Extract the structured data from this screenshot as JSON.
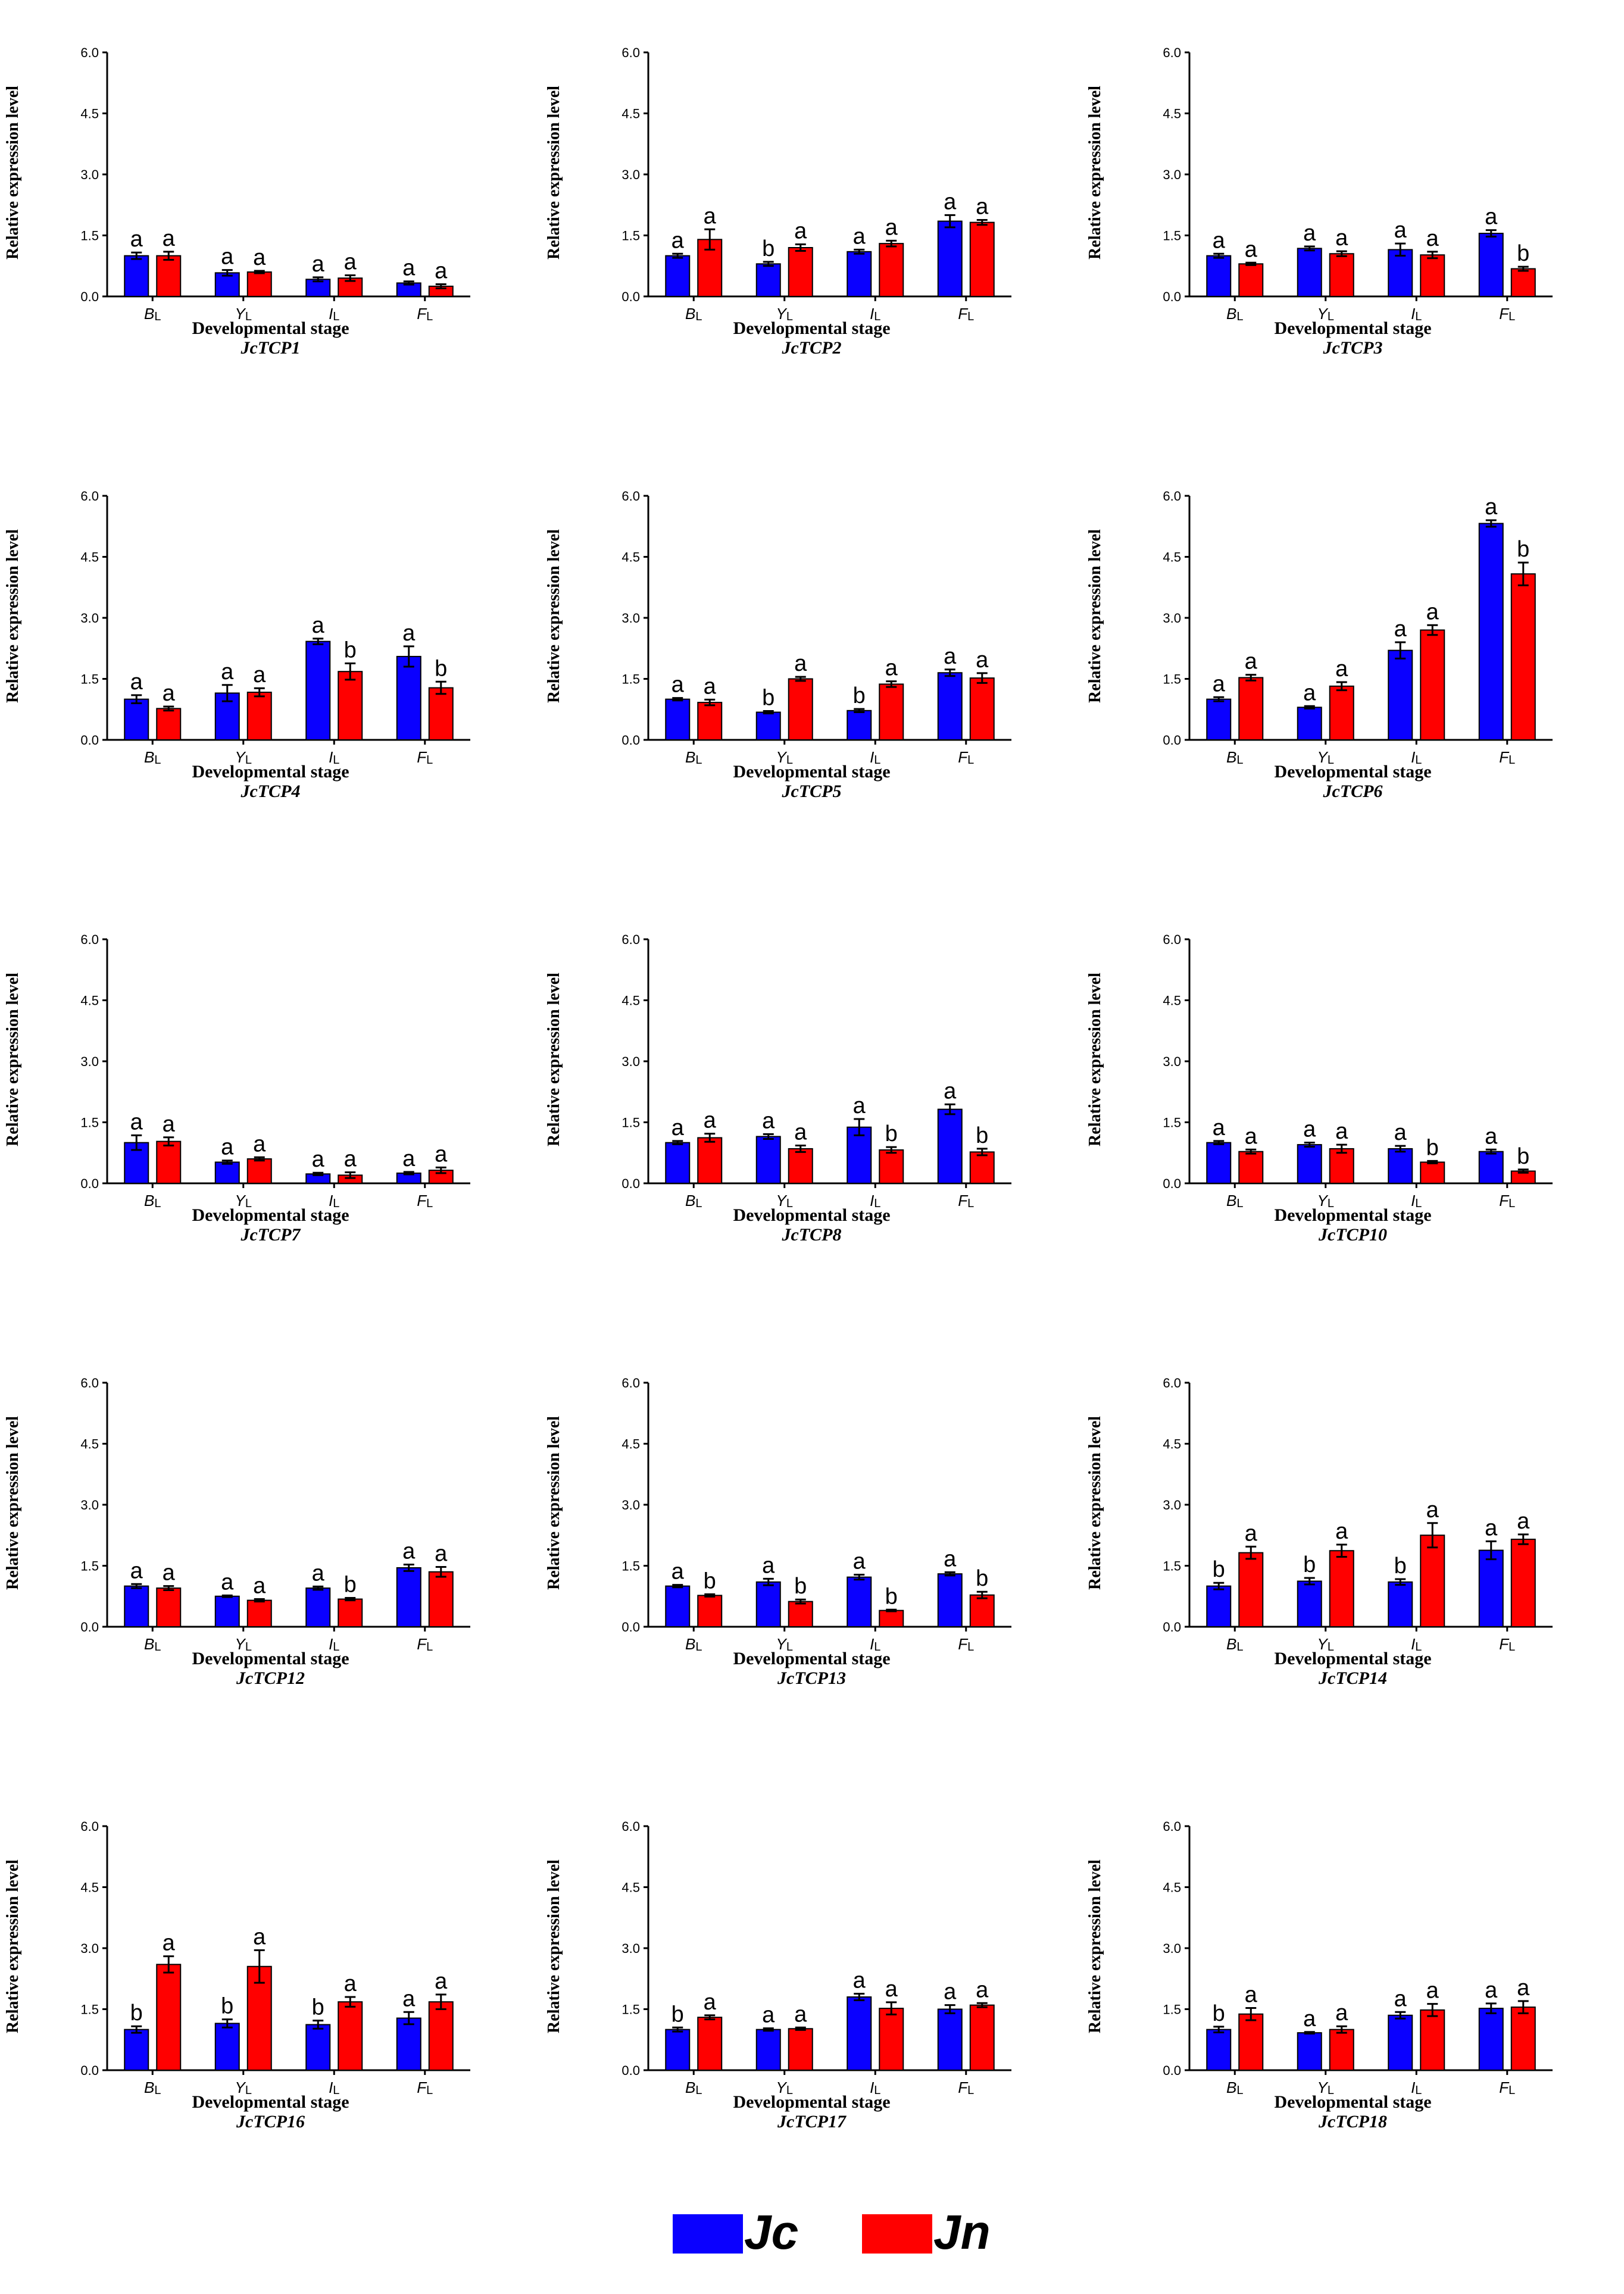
{
  "colors": {
    "Jc": "#0a00ff",
    "Jn": "#ff0000"
  },
  "legend": [
    {
      "label": "Jc",
      "color": "#0a00ff"
    },
    {
      "label": "Jn",
      "color": "#ff0000"
    }
  ],
  "chart_data": [
    {
      "type": "bar",
      "gene": "JcTCP1",
      "xlabel": "Developmental stage",
      "ylabel": "Relative expression level",
      "ylim": [
        0,
        6
      ],
      "yticks": [
        "0.0",
        "1.5",
        "3.0",
        "4.5",
        "6.0"
      ],
      "categories": [
        "B",
        "Y",
        "I",
        "F"
      ],
      "category_subscript": "L",
      "series": [
        {
          "name": "Jc",
          "values": [
            1.0,
            0.58,
            0.42,
            0.33
          ],
          "errors": [
            0.08,
            0.07,
            0.05,
            0.04
          ],
          "letters": [
            "a",
            "a",
            "a",
            "a"
          ]
        },
        {
          "name": "Jn",
          "values": [
            1.0,
            0.6,
            0.45,
            0.25
          ],
          "errors": [
            0.1,
            0.03,
            0.07,
            0.05
          ],
          "letters": [
            "a",
            "a",
            "a",
            "a"
          ]
        }
      ]
    },
    {
      "type": "bar",
      "gene": "JcTCP2",
      "xlabel": "Developmental stage",
      "ylabel": "Relative expression level",
      "ylim": [
        0,
        6
      ],
      "yticks": [
        "0.0",
        "1.5",
        "3.0",
        "4.5",
        "6.0"
      ],
      "categories": [
        "B",
        "Y",
        "I",
        "F"
      ],
      "category_subscript": "L",
      "series": [
        {
          "name": "Jc",
          "values": [
            1.0,
            0.8,
            1.1,
            1.85
          ],
          "errors": [
            0.05,
            0.05,
            0.05,
            0.15
          ],
          "letters": [
            "a",
            "b",
            "a",
            "a"
          ]
        },
        {
          "name": "Jn",
          "values": [
            1.4,
            1.2,
            1.3,
            1.82
          ],
          "errors": [
            0.25,
            0.08,
            0.07,
            0.06
          ],
          "letters": [
            "a",
            "a",
            "a",
            "a"
          ]
        }
      ]
    },
    {
      "type": "bar",
      "gene": "JcTCP3",
      "xlabel": "Developmental stage",
      "ylabel": "Relative expression level",
      "ylim": [
        0,
        6
      ],
      "yticks": [
        "0.0",
        "1.5",
        "3.0",
        "4.5",
        "6.0"
      ],
      "categories": [
        "B",
        "Y",
        "I",
        "F"
      ],
      "category_subscript": "L",
      "series": [
        {
          "name": "Jc",
          "values": [
            1.0,
            1.18,
            1.15,
            1.55
          ],
          "errors": [
            0.05,
            0.05,
            0.15,
            0.08
          ],
          "letters": [
            "a",
            "a",
            "a",
            "a"
          ]
        },
        {
          "name": "Jn",
          "values": [
            0.8,
            1.05,
            1.02,
            0.68
          ],
          "errors": [
            0.03,
            0.06,
            0.08,
            0.05
          ],
          "letters": [
            "a",
            "a",
            "a",
            "b"
          ]
        }
      ]
    },
    {
      "type": "bar",
      "gene": "JcTCP4",
      "xlabel": "Developmental stage",
      "ylabel": "Relative expression level",
      "ylim": [
        0,
        6
      ],
      "yticks": [
        "0.0",
        "1.5",
        "3.0",
        "4.5",
        "6.0"
      ],
      "categories": [
        "B",
        "Y",
        "I",
        "F"
      ],
      "category_subscript": "L",
      "series": [
        {
          "name": "Jc",
          "values": [
            1.0,
            1.15,
            2.42,
            2.05
          ],
          "errors": [
            0.1,
            0.2,
            0.07,
            0.25
          ],
          "letters": [
            "a",
            "a",
            "a",
            "a"
          ]
        },
        {
          "name": "Jn",
          "values": [
            0.77,
            1.17,
            1.68,
            1.28
          ],
          "errors": [
            0.05,
            0.1,
            0.2,
            0.15
          ],
          "letters": [
            "a",
            "a",
            "b",
            "b"
          ]
        }
      ]
    },
    {
      "type": "bar",
      "gene": "JcTCP5",
      "xlabel": "Developmental stage",
      "ylabel": "Relative expression level",
      "ylim": [
        0,
        6
      ],
      "yticks": [
        "0.0",
        "1.5",
        "3.0",
        "4.5",
        "6.0"
      ],
      "categories": [
        "B",
        "Y",
        "I",
        "F"
      ],
      "category_subscript": "L",
      "series": [
        {
          "name": "Jc",
          "values": [
            1.0,
            0.68,
            0.72,
            1.65
          ],
          "errors": [
            0.03,
            0.03,
            0.04,
            0.08
          ],
          "letters": [
            "a",
            "b",
            "b",
            "a"
          ]
        },
        {
          "name": "Jn",
          "values": [
            0.92,
            1.5,
            1.37,
            1.52
          ],
          "errors": [
            0.07,
            0.05,
            0.07,
            0.12
          ],
          "letters": [
            "a",
            "a",
            "a",
            "a"
          ]
        }
      ]
    },
    {
      "type": "bar",
      "gene": "JcTCP6",
      "xlabel": "Developmental stage",
      "ylabel": "Relative expression level",
      "ylim": [
        0,
        6
      ],
      "yticks": [
        "0.0",
        "1.5",
        "3.0",
        "4.5",
        "6.0"
      ],
      "categories": [
        "B",
        "Y",
        "I",
        "F"
      ],
      "category_subscript": "L",
      "series": [
        {
          "name": "Jc",
          "values": [
            1.0,
            0.8,
            2.2,
            5.32
          ],
          "errors": [
            0.05,
            0.03,
            0.2,
            0.08
          ],
          "letters": [
            "a",
            "a",
            "a",
            "a"
          ]
        },
        {
          "name": "Jn",
          "values": [
            1.53,
            1.32,
            2.7,
            4.08
          ],
          "errors": [
            0.07,
            0.1,
            0.12,
            0.28
          ],
          "letters": [
            "a",
            "a",
            "a",
            "b"
          ]
        }
      ]
    },
    {
      "type": "bar",
      "gene": "JcTCP7",
      "xlabel": "Developmental stage",
      "ylabel": "Relative expression level",
      "ylim": [
        0,
        6
      ],
      "yticks": [
        "0.0",
        "1.5",
        "3.0",
        "4.5",
        "6.0"
      ],
      "categories": [
        "B",
        "Y",
        "I",
        "F"
      ],
      "category_subscript": "L",
      "series": [
        {
          "name": "Jc",
          "values": [
            1.0,
            0.52,
            0.23,
            0.25
          ],
          "errors": [
            0.18,
            0.04,
            0.03,
            0.03
          ],
          "letters": [
            "a",
            "a",
            "a",
            "a"
          ]
        },
        {
          "name": "Jn",
          "values": [
            1.03,
            0.6,
            0.2,
            0.32
          ],
          "errors": [
            0.1,
            0.04,
            0.07,
            0.07
          ],
          "letters": [
            "a",
            "a",
            "a",
            "a"
          ]
        }
      ]
    },
    {
      "type": "bar",
      "gene": "JcTCP8",
      "xlabel": "Developmental stage",
      "ylabel": "Relative expression level",
      "ylim": [
        0,
        6
      ],
      "yticks": [
        "0.0",
        "1.5",
        "3.0",
        "4.5",
        "6.0"
      ],
      "categories": [
        "B",
        "Y",
        "I",
        "F"
      ],
      "category_subscript": "L",
      "series": [
        {
          "name": "Jc",
          "values": [
            1.0,
            1.15,
            1.38,
            1.82
          ],
          "errors": [
            0.04,
            0.06,
            0.2,
            0.12
          ],
          "letters": [
            "a",
            "a",
            "a",
            "a"
          ]
        },
        {
          "name": "Jn",
          "values": [
            1.12,
            0.85,
            0.82,
            0.77
          ],
          "errors": [
            0.1,
            0.08,
            0.07,
            0.08
          ],
          "letters": [
            "a",
            "a",
            "b",
            "b"
          ]
        }
      ]
    },
    {
      "type": "bar",
      "gene": "JcTCP10",
      "xlabel": "Developmental stage",
      "ylabel": "Relative expression level",
      "ylim": [
        0,
        6
      ],
      "yticks": [
        "0.0",
        "1.5",
        "3.0",
        "4.5",
        "6.0"
      ],
      "categories": [
        "B",
        "Y",
        "I",
        "F"
      ],
      "category_subscript": "L",
      "series": [
        {
          "name": "Jc",
          "values": [
            1.0,
            0.95,
            0.85,
            0.78
          ],
          "errors": [
            0.04,
            0.05,
            0.07,
            0.05
          ],
          "letters": [
            "a",
            "a",
            "a",
            "a"
          ]
        },
        {
          "name": "Jn",
          "values": [
            0.78,
            0.85,
            0.52,
            0.3
          ],
          "errors": [
            0.05,
            0.1,
            0.03,
            0.04
          ],
          "letters": [
            "a",
            "a",
            "b",
            "b"
          ]
        }
      ]
    },
    {
      "type": "bar",
      "gene": "JcTCP12",
      "xlabel": "Developmental stage",
      "ylabel": "Relative expression level",
      "ylim": [
        0,
        6
      ],
      "yticks": [
        "0.0",
        "1.5",
        "3.0",
        "4.5",
        "6.0"
      ],
      "categories": [
        "B",
        "Y",
        "I",
        "F"
      ],
      "category_subscript": "L",
      "series": [
        {
          "name": "Jc",
          "values": [
            1.0,
            0.75,
            0.95,
            1.45
          ],
          "errors": [
            0.05,
            0.02,
            0.04,
            0.08
          ],
          "letters": [
            "a",
            "a",
            "a",
            "a"
          ]
        },
        {
          "name": "Jn",
          "values": [
            0.95,
            0.65,
            0.68,
            1.35
          ],
          "errors": [
            0.05,
            0.03,
            0.03,
            0.12
          ],
          "letters": [
            "a",
            "a",
            "b",
            "a"
          ]
        }
      ]
    },
    {
      "type": "bar",
      "gene": "JcTCP13",
      "xlabel": "Developmental stage",
      "ylabel": "Relative expression level",
      "ylim": [
        0,
        6
      ],
      "yticks": [
        "0.0",
        "1.5",
        "3.0",
        "4.5",
        "6.0"
      ],
      "categories": [
        "B",
        "Y",
        "I",
        "F"
      ],
      "category_subscript": "L",
      "series": [
        {
          "name": "Jc",
          "values": [
            1.0,
            1.1,
            1.22,
            1.3
          ],
          "errors": [
            0.03,
            0.08,
            0.06,
            0.04
          ],
          "letters": [
            "a",
            "a",
            "a",
            "a"
          ]
        },
        {
          "name": "Jn",
          "values": [
            0.77,
            0.62,
            0.4,
            0.78
          ],
          "errors": [
            0.03,
            0.05,
            0.02,
            0.08
          ],
          "letters": [
            "b",
            "b",
            "b",
            "b"
          ]
        }
      ]
    },
    {
      "type": "bar",
      "gene": "JcTCP14",
      "xlabel": "Developmental stage",
      "ylabel": "Relative expression level",
      "ylim": [
        0,
        6
      ],
      "yticks": [
        "0.0",
        "1.5",
        "3.0",
        "4.5",
        "6.0"
      ],
      "categories": [
        "B",
        "Y",
        "I",
        "F"
      ],
      "category_subscript": "L",
      "series": [
        {
          "name": "Jc",
          "values": [
            1.0,
            1.12,
            1.1,
            1.88
          ],
          "errors": [
            0.08,
            0.08,
            0.07,
            0.22
          ],
          "letters": [
            "b",
            "b",
            "b",
            "a"
          ]
        },
        {
          "name": "Jn",
          "values": [
            1.82,
            1.87,
            2.25,
            2.15
          ],
          "errors": [
            0.15,
            0.15,
            0.3,
            0.12
          ],
          "letters": [
            "a",
            "a",
            "a",
            "a"
          ]
        }
      ]
    },
    {
      "type": "bar",
      "gene": "JcTCP16",
      "xlabel": "Developmental stage",
      "ylabel": "Relative expression level",
      "ylim": [
        0,
        6
      ],
      "yticks": [
        "0.0",
        "1.5",
        "3.0",
        "4.5",
        "6.0"
      ],
      "categories": [
        "B",
        "Y",
        "I",
        "F"
      ],
      "category_subscript": "L",
      "series": [
        {
          "name": "Jc",
          "values": [
            1.0,
            1.15,
            1.12,
            1.28
          ],
          "errors": [
            0.08,
            0.1,
            0.1,
            0.15
          ],
          "letters": [
            "b",
            "b",
            "b",
            "a"
          ]
        },
        {
          "name": "Jn",
          "values": [
            2.6,
            2.55,
            1.68,
            1.68
          ],
          "errors": [
            0.2,
            0.4,
            0.12,
            0.18
          ],
          "letters": [
            "a",
            "a",
            "a",
            "a"
          ]
        }
      ]
    },
    {
      "type": "bar",
      "gene": "JcTCP17",
      "xlabel": "Developmental stage",
      "ylabel": "Relative expression level",
      "ylim": [
        0,
        6
      ],
      "yticks": [
        "0.0",
        "1.5",
        "3.0",
        "4.5",
        "6.0"
      ],
      "categories": [
        "B",
        "Y",
        "I",
        "F"
      ],
      "category_subscript": "L",
      "series": [
        {
          "name": "Jc",
          "values": [
            1.0,
            1.0,
            1.8,
            1.5
          ],
          "errors": [
            0.05,
            0.03,
            0.08,
            0.1
          ],
          "letters": [
            "b",
            "a",
            "a",
            "a"
          ]
        },
        {
          "name": "Jn",
          "values": [
            1.3,
            1.02,
            1.52,
            1.6
          ],
          "errors": [
            0.05,
            0.03,
            0.15,
            0.05
          ],
          "letters": [
            "a",
            "a",
            "a",
            "a"
          ]
        }
      ]
    },
    {
      "type": "bar",
      "gene": "JcTCP18",
      "xlabel": "Developmental stage",
      "ylabel": "Relative expression level",
      "ylim": [
        0,
        6
      ],
      "yticks": [
        "0.0",
        "1.5",
        "3.0",
        "4.5",
        "6.0"
      ],
      "categories": [
        "B",
        "Y",
        "I",
        "F"
      ],
      "category_subscript": "L",
      "series": [
        {
          "name": "Jc",
          "values": [
            1.0,
            0.92,
            1.35,
            1.52
          ],
          "errors": [
            0.07,
            0.02,
            0.08,
            0.12
          ],
          "letters": [
            "b",
            "a",
            "a",
            "a"
          ]
        },
        {
          "name": "Jn",
          "values": [
            1.38,
            1.0,
            1.48,
            1.55
          ],
          "errors": [
            0.15,
            0.08,
            0.15,
            0.15
          ],
          "letters": [
            "a",
            "a",
            "a",
            "a"
          ]
        }
      ]
    }
  ]
}
